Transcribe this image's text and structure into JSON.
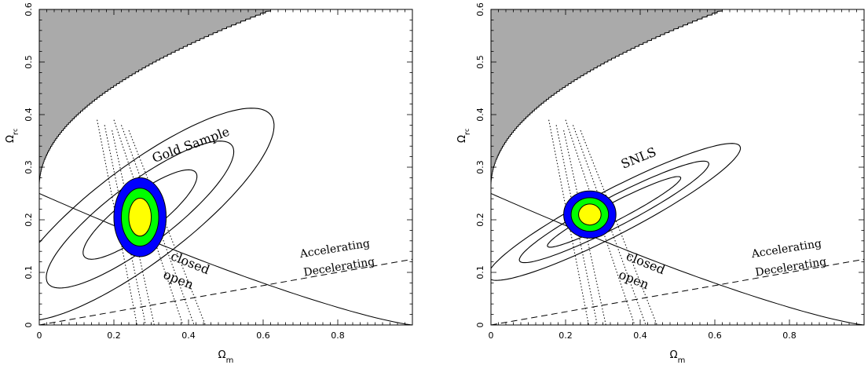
{
  "chart_data": [
    {
      "type": "contour",
      "xlabel": "Ω",
      "xlabel_sub": "m",
      "ylabel": "Ω",
      "ylabel_sub": "r",
      "ylabel_subsub": "c",
      "xlim": [
        0,
        1
      ],
      "ylim": [
        0,
        0.6
      ],
      "xticks": [
        "0",
        "0.2",
        "0.4",
        "0.6",
        "0.8"
      ],
      "yticks": [
        "0",
        "0.1",
        "0.2",
        "0.3",
        "0.4",
        "0.5",
        "0.6"
      ],
      "dataset_label": "Gold Sample",
      "region_labels": {
        "closed": "closed",
        "open": "open",
        "accelerating": "Accelerating",
        "decelerating": "Decelerating"
      },
      "colors": {
        "excluded_region": "#aaaaaa",
        "contour_outer": "#0000ff",
        "contour_mid": "#00ff00",
        "contour_inner": "#ffff00"
      },
      "sn_contours": {
        "center": [
          0.27,
          0.21
        ],
        "semi_axes": [
          [
            0.4,
            0.1
          ],
          [
            0.28,
            0.065
          ],
          [
            0.17,
            0.04
          ]
        ],
        "tilt_deg": 27
      },
      "combined_contours": {
        "center": [
          0.27,
          0.205
        ],
        "radii": [
          [
            0.07,
            0.075
          ],
          [
            0.05,
            0.055
          ],
          [
            0.03,
            0.036
          ]
        ]
      },
      "baryon_bands": [
        0.17,
        0.12
      ],
      "boundary_curve": {
        "intercept": 0.265,
        "endpoint": [
          0.62,
          0.6
        ]
      },
      "flat_curve": {
        "intercept": 0.25,
        "x_end": 1.0
      },
      "acceleration_line": {
        "from": [
          0,
          0
        ],
        "to": [
          1,
          0.125
        ]
      }
    },
    {
      "type": "contour",
      "xlabel": "Ω",
      "xlabel_sub": "m",
      "ylabel": "Ω",
      "ylabel_sub": "r",
      "ylabel_subsub": "c",
      "xlim": [
        0,
        1
      ],
      "ylim": [
        0,
        0.6
      ],
      "xticks": [
        "0",
        "0.2",
        "0.4",
        "0.6",
        "0.8"
      ],
      "yticks": [
        "0",
        "0.1",
        "0.2",
        "0.3",
        "0.4",
        "0.5",
        "0.6"
      ],
      "dataset_label": "SNLS",
      "region_labels": {
        "closed": "closed",
        "open": "open",
        "accelerating": "Accelerating",
        "decelerating": "Decelerating"
      },
      "colors": {
        "excluded_region": "#aaaaaa",
        "contour_outer": "#0000ff",
        "contour_mid": "#00ff00",
        "contour_inner": "#ffff00"
      },
      "sn_contours": {
        "center": [
          0.33,
          0.215
        ],
        "semi_axes": [
          [
            0.36,
            0.045
          ],
          [
            0.27,
            0.03
          ],
          [
            0.19,
            0.018
          ]
        ],
        "tilt_deg": 20
      },
      "combined_contours": {
        "center": [
          0.265,
          0.21
        ],
        "radii": [
          [
            0.07,
            0.045
          ],
          [
            0.05,
            0.032
          ],
          [
            0.03,
            0.02
          ]
        ]
      },
      "baryon_bands": [
        0.17,
        0.12
      ],
      "boundary_curve": {
        "intercept": 0.265,
        "endpoint": [
          0.62,
          0.6
        ]
      },
      "flat_curve": {
        "intercept": 0.25,
        "x_end": 1.0
      },
      "acceleration_line": {
        "from": [
          0,
          0
        ],
        "to": [
          1,
          0.125
        ]
      }
    }
  ]
}
